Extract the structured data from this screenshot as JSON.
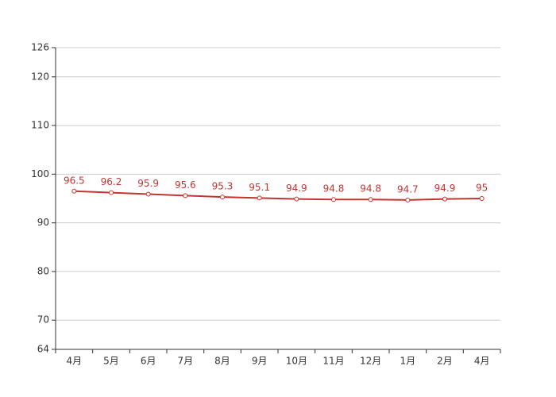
{
  "chart_data": {
    "type": "line",
    "categories": [
      "4月",
      "5月",
      "6月",
      "7月",
      "8月",
      "9月",
      "10月",
      "11月",
      "12月",
      "1月",
      "2月",
      "4月"
    ],
    "values": [
      96.5,
      96.2,
      95.9,
      95.6,
      95.3,
      95.1,
      94.9,
      94.8,
      94.8,
      94.7,
      94.9,
      95
    ],
    "color": "#c23531",
    "ylim": [
      64,
      126
    ],
    "yticks": [
      64,
      70,
      80,
      90,
      100,
      110,
      120,
      126
    ],
    "grid": true
  }
}
